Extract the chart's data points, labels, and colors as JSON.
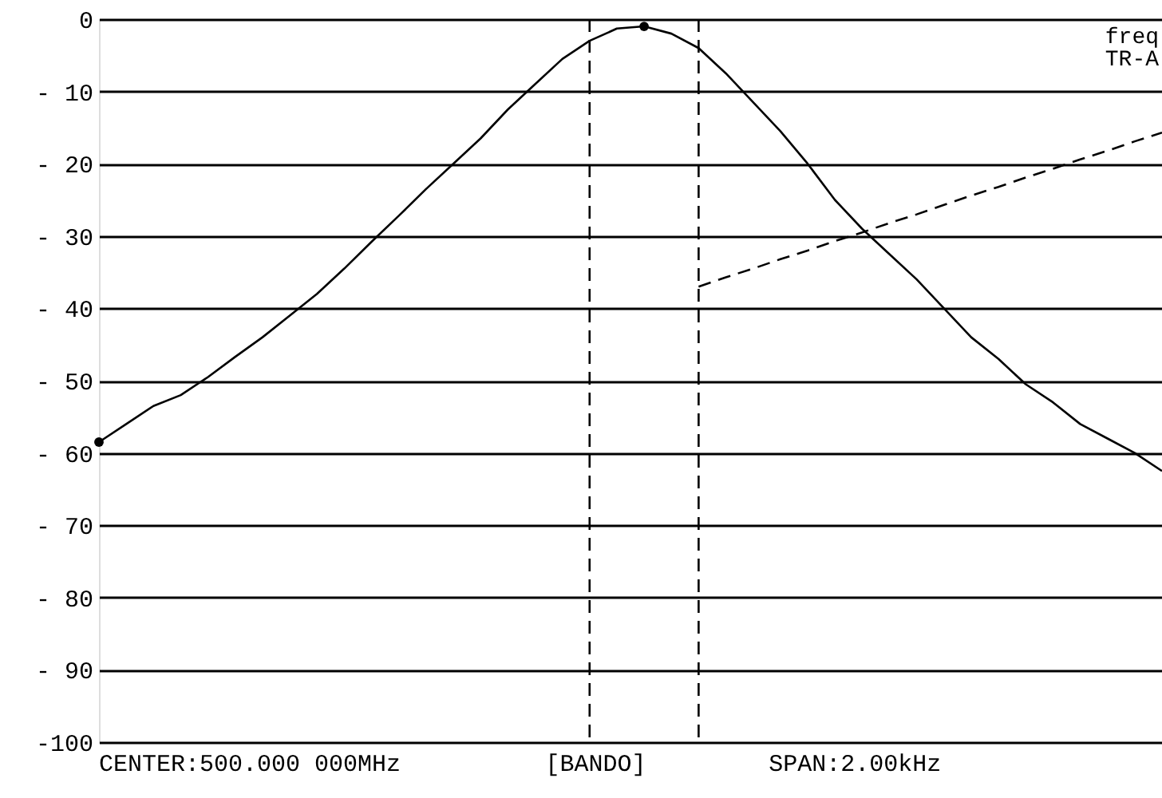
{
  "chart_data": {
    "type": "line",
    "categories": [
      null,
      null,
      null,
      null,
      null,
      null,
      null,
      null,
      null,
      null,
      null,
      null,
      null,
      null,
      null,
      null,
      null,
      null,
      null,
      null,
      null,
      null,
      null,
      null,
      null,
      null,
      null,
      null,
      null,
      null,
      null,
      null,
      null,
      null,
      null,
      null,
      null,
      null,
      null,
      null
    ],
    "series": [
      {
        "color": "#000000",
        "values": [
          -58.5,
          -56,
          -53.5,
          -52,
          -49.5,
          -46.7,
          -44,
          -41,
          -38,
          -34.5,
          -30.8,
          -27.2,
          -23.5,
          -20,
          -16.5,
          -12.5,
          -9,
          -5.5,
          -3,
          -1.3,
          -1,
          -2,
          -4,
          -7.5,
          -11.5,
          -15.5,
          -20,
          -25,
          -29,
          -32.5,
          -36,
          -40,
          -44,
          -47,
          -50.5,
          -53,
          -56,
          -58,
          -60,
          -62.5
        ]
      },
      {
        "line_style": "dashed",
        "color": "#000000",
        "values": [
          null,
          null,
          null,
          null,
          null,
          null,
          null,
          null,
          null,
          null,
          null,
          null,
          null,
          null,
          null,
          null,
          null,
          null,
          null,
          null,
          null,
          null,
          -37,
          -35.7,
          -34.5,
          -33.2,
          -32,
          -30.7,
          -29.5,
          -28.2,
          -27,
          -25.7,
          -24.4,
          -23.2,
          -21.9,
          -20.7,
          -19.4,
          -18.2,
          -16.9,
          -15.7
        ]
      },
      {
        "type": "scatter",
        "marker": "circle",
        "color": "#000000",
        "values": [
          -58.5,
          null,
          null,
          null,
          null,
          null,
          null,
          null,
          null,
          null,
          null,
          null,
          null,
          null,
          null,
          null,
          null,
          null,
          null,
          null,
          -1,
          null,
          null,
          null,
          null,
          null,
          null,
          null,
          null,
          null,
          null,
          null,
          null,
          null,
          null,
          null,
          null,
          null,
          null,
          null
        ]
      }
    ],
    "ylim": [
      -100,
      0
    ],
    "yticks": [
      {
        "value": 0,
        "label": "0"
      },
      {
        "value": -10,
        "label": "- 10"
      },
      {
        "value": -20,
        "label": "- 20"
      },
      {
        "value": -30,
        "label": "- 30"
      },
      {
        "value": -40,
        "label": "- 40"
      },
      {
        "value": -50,
        "label": "- 50"
      },
      {
        "value": -60,
        "label": "- 60"
      },
      {
        "value": -70,
        "label": "- 70"
      },
      {
        "value": -80,
        "label": "- 80"
      },
      {
        "value": -90,
        "label": "- 90"
      },
      {
        "value": -100,
        "label": "-100"
      }
    ],
    "tick_labels": "y",
    "grid": true,
    "line_style": "solid",
    "annotations": [
      "CENTER:500.000 000MHz",
      "[BANDO]",
      "SPAN:2.00kHz",
      "freq",
      "TR-A"
    ]
  }
}
